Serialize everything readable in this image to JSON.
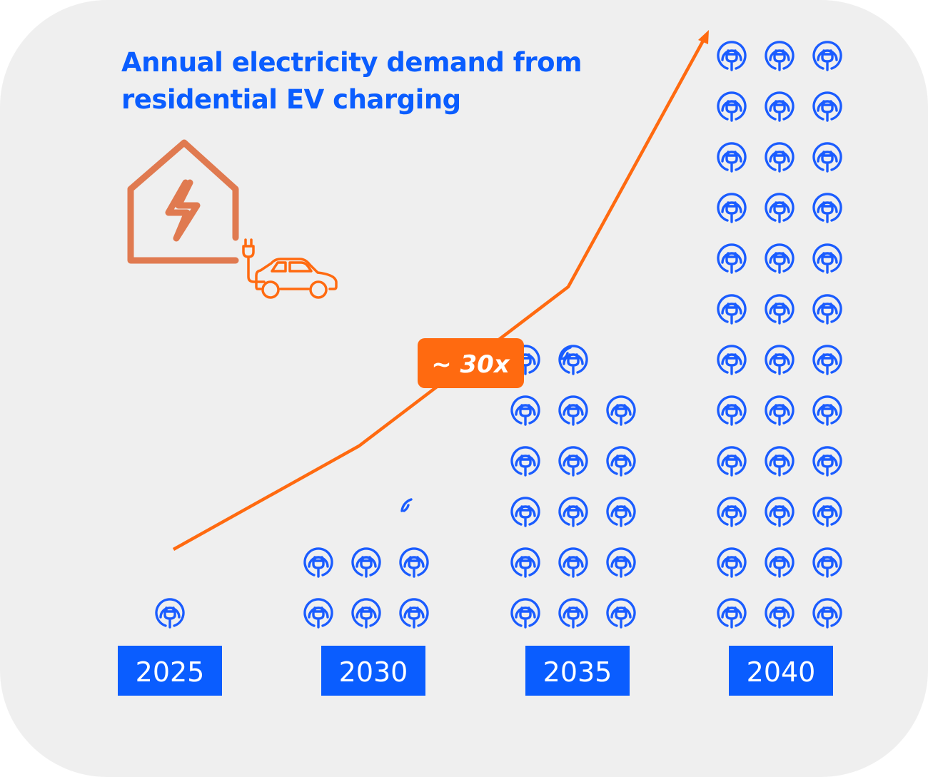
{
  "colors": {
    "background": "#efefef",
    "title": "#0a5dff",
    "year_box": "#0a5dff",
    "trend_line": "#ff6a10",
    "badge": "#ff6a10",
    "icon": "#1a5cff",
    "house_icon": "#e07a50"
  },
  "icons": {
    "house": "house-lightning-icon",
    "car": "car-plug-icon",
    "unit": "ev-charging-plug-icon"
  },
  "title_lines": [
    "Annual electricity demand from",
    "residential EV charging"
  ],
  "badge_label": "~ 30x",
  "chart_data": {
    "type": "pictogram",
    "title": "Annual electricity demand from residential EV charging",
    "categories": [
      "2025",
      "2030",
      "2035",
      "2040"
    ],
    "unit_icon": "ev-charging-plug-icon",
    "icons_per_row": 3,
    "series": [
      {
        "type": "icon_count",
        "values": [
          1,
          6.5,
          17.5,
          36
        ]
      },
      {
        "type": "line",
        "values": [
          1,
          6.5,
          17.5,
          36
        ]
      }
    ],
    "annotation": "~ 30x",
    "grid": false,
    "legend": "none"
  }
}
